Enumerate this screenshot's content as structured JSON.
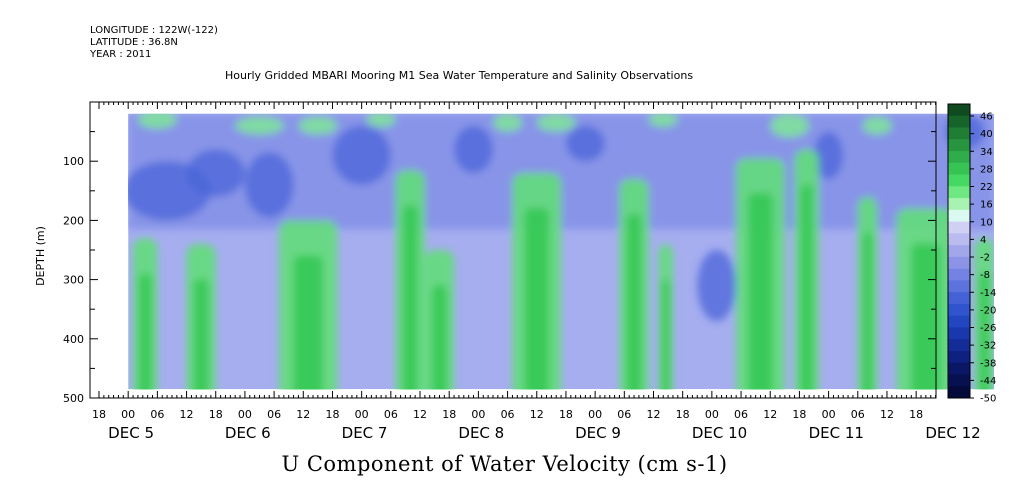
{
  "header": {
    "line1": "LONGITUDE : 122W(-122)",
    "line2": "LATITUDE : 36.8N",
    "line3": "YEAR : 2011"
  },
  "chart_data": {
    "type": "heatmap",
    "title": "Hourly Gridded MBARI Mooring M1 Sea Water Temperature and Salinity Observations",
    "xlabel": "U Component of Water Velocity (cm s-1)",
    "ylabel": "DEPTH (m)",
    "x_unit": "hours since DEC 4 2011 18:00",
    "xlim": [
      0,
      186
    ],
    "data_xrange": [
      6,
      184
    ],
    "ylim": [
      500,
      0
    ],
    "data_yrange": [
      20,
      485
    ],
    "y_ticks": [
      100,
      200,
      300,
      400,
      500
    ],
    "x_hour_ticks": [
      {
        "h": 0,
        "label": "18"
      },
      {
        "h": 6,
        "label": "00"
      },
      {
        "h": 12,
        "label": "06"
      },
      {
        "h": 18,
        "label": "12"
      },
      {
        "h": 24,
        "label": "18"
      },
      {
        "h": 30,
        "label": "00"
      },
      {
        "h": 36,
        "label": "06"
      },
      {
        "h": 42,
        "label": "12"
      },
      {
        "h": 48,
        "label": "18"
      },
      {
        "h": 54,
        "label": "00"
      },
      {
        "h": 60,
        "label": "06"
      },
      {
        "h": 66,
        "label": "12"
      },
      {
        "h": 72,
        "label": "18"
      },
      {
        "h": 78,
        "label": "00"
      },
      {
        "h": 84,
        "label": "06"
      },
      {
        "h": 90,
        "label": "12"
      },
      {
        "h": 96,
        "label": "18"
      },
      {
        "h": 102,
        "label": "00"
      },
      {
        "h": 108,
        "label": "06"
      },
      {
        "h": 114,
        "label": "12"
      },
      {
        "h": 120,
        "label": "18"
      },
      {
        "h": 126,
        "label": "00"
      },
      {
        "h": 132,
        "label": "06"
      },
      {
        "h": 138,
        "label": "12"
      },
      {
        "h": 144,
        "label": "18"
      },
      {
        "h": 150,
        "label": "00"
      },
      {
        "h": 156,
        "label": "06"
      },
      {
        "h": 162,
        "label": "12"
      },
      {
        "h": 168,
        "label": "18"
      },
      {
        "h": 174,
        "label": "00"
      },
      {
        "h": 180,
        "label": "06"
      },
      {
        "h": 186,
        "label": "12"
      }
    ],
    "day_labels": [
      {
        "h": 6,
        "label": "DEC 5"
      },
      {
        "h": 30,
        "label": "DEC 6"
      },
      {
        "h": 54,
        "label": "DEC 7"
      },
      {
        "h": 78,
        "label": "DEC 8"
      },
      {
        "h": 102,
        "label": "DEC 9"
      },
      {
        "h": 126,
        "label": "DEC 10"
      },
      {
        "h": 150,
        "label": "DEC 11"
      },
      {
        "h": 174,
        "label": "DEC 12"
      }
    ],
    "colorbar": {
      "min": -50,
      "max": 50,
      "labels": [
        "46",
        "40",
        "34",
        "28",
        "22",
        "16",
        "10",
        "4",
        "-2",
        "-8",
        "-14",
        "-20",
        "-26",
        "-32",
        "-38",
        "-44",
        "-50"
      ],
      "colors": [
        "#0f4a20",
        "#17642a",
        "#1f7d34",
        "#27953f",
        "#2fad4a",
        "#38c455",
        "#45d862",
        "#6fe882",
        "#a8f3b2",
        "#d8faf0",
        "#cfd0f4",
        "#babcf0",
        "#a2a7ec",
        "#8c94e8",
        "#7483e3",
        "#5c72dd",
        "#4462d6",
        "#3054cd",
        "#2246c0",
        "#1a38ae",
        "#142c98",
        "#0e2080",
        "#0a1767",
        "#071050",
        "#040a3a"
      ]
    },
    "columns": [
      {
        "h1": 7,
        "h2": 12,
        "top": 230
      },
      {
        "h1": 18,
        "h2": 24,
        "top": 240
      },
      {
        "h1": 37,
        "h2": 49,
        "top": 200
      },
      {
        "h1": 61,
        "h2": 67,
        "top": 115
      },
      {
        "h1": 67,
        "h2": 73,
        "top": 250
      },
      {
        "h1": 85,
        "h2": 95,
        "top": 120
      },
      {
        "h1": 107,
        "h2": 113,
        "top": 130
      },
      {
        "h1": 115,
        "h2": 118,
        "top": 240
      },
      {
        "h1": 131,
        "h2": 141,
        "top": 95
      },
      {
        "h1": 143,
        "h2": 148,
        "top": 80
      },
      {
        "h1": 156,
        "h2": 160,
        "top": 160
      },
      {
        "h1": 164,
        "h2": 176,
        "top": 180
      },
      {
        "h1": 180,
        "h2": 184,
        "top": 230
      }
    ],
    "blue_spots": [
      {
        "h": 14,
        "d": 150,
        "rh": 9,
        "rd": 50
      },
      {
        "h": 24,
        "d": 120,
        "rh": 6,
        "rd": 40
      },
      {
        "h": 35,
        "d": 140,
        "rh": 5,
        "rd": 55
      },
      {
        "h": 54,
        "d": 90,
        "rh": 6,
        "rd": 50
      },
      {
        "h": 77,
        "d": 80,
        "rh": 4,
        "rd": 40
      },
      {
        "h": 100,
        "d": 70,
        "rh": 4,
        "rd": 30
      },
      {
        "h": 150,
        "d": 90,
        "rh": 3,
        "rd": 40
      },
      {
        "h": 178,
        "d": 50,
        "rh": 4,
        "rd": 30
      },
      {
        "h": 127,
        "d": 310,
        "rh": 4,
        "rd": 60
      }
    ],
    "top_green_spots": [
      {
        "h": 12,
        "d": 30,
        "rh": 4,
        "rd": 15
      },
      {
        "h": 33,
        "d": 40,
        "rh": 5,
        "rd": 15
      },
      {
        "h": 45,
        "d": 40,
        "rh": 4,
        "rd": 15
      },
      {
        "h": 58,
        "d": 30,
        "rh": 3,
        "rd": 12
      },
      {
        "h": 84,
        "d": 35,
        "rh": 3,
        "rd": 15
      },
      {
        "h": 94,
        "d": 35,
        "rh": 4,
        "rd": 15
      },
      {
        "h": 116,
        "d": 30,
        "rh": 3,
        "rd": 12
      },
      {
        "h": 142,
        "d": 40,
        "rh": 4,
        "rd": 20
      },
      {
        "h": 160,
        "d": 40,
        "rh": 3,
        "rd": 15
      }
    ]
  }
}
